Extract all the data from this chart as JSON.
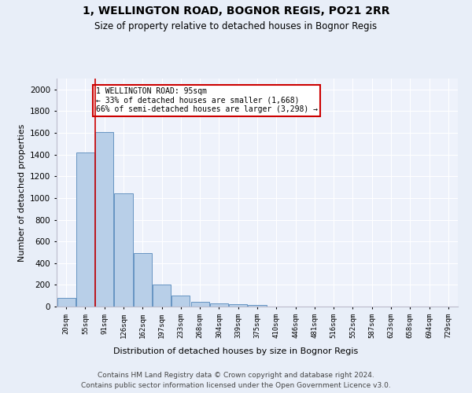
{
  "title1": "1, WELLINGTON ROAD, BOGNOR REGIS, PO21 2RR",
  "title2": "Size of property relative to detached houses in Bognor Regis",
  "xlabel": "Distribution of detached houses by size in Bognor Regis",
  "ylabel": "Number of detached properties",
  "bar_labels": [
    "20sqm",
    "55sqm",
    "91sqm",
    "126sqm",
    "162sqm",
    "197sqm",
    "233sqm",
    "268sqm",
    "304sqm",
    "339sqm",
    "375sqm",
    "410sqm",
    "446sqm",
    "481sqm",
    "516sqm",
    "552sqm",
    "587sqm",
    "623sqm",
    "658sqm",
    "694sqm",
    "729sqm"
  ],
  "bar_values": [
    80,
    1420,
    1610,
    1045,
    490,
    205,
    105,
    40,
    28,
    20,
    15,
    0,
    0,
    0,
    0,
    0,
    0,
    0,
    0,
    0,
    0
  ],
  "bar_color": "#b8cfe8",
  "bar_edge_color": "#5588bb",
  "red_line_x": 2,
  "annotation_text": "1 WELLINGTON ROAD: 95sqm\n← 33% of detached houses are smaller (1,668)\n66% of semi-detached houses are larger (3,298) →",
  "annotation_box_color": "#ffffff",
  "annotation_box_edge": "#cc0000",
  "ylim": [
    0,
    2100
  ],
  "yticks": [
    0,
    200,
    400,
    600,
    800,
    1000,
    1200,
    1400,
    1600,
    1800,
    2000
  ],
  "footer": "Contains HM Land Registry data © Crown copyright and database right 2024.\nContains public sector information licensed under the Open Government Licence v3.0.",
  "bg_color": "#e8eef8",
  "plot_bg_color": "#eef2fb"
}
